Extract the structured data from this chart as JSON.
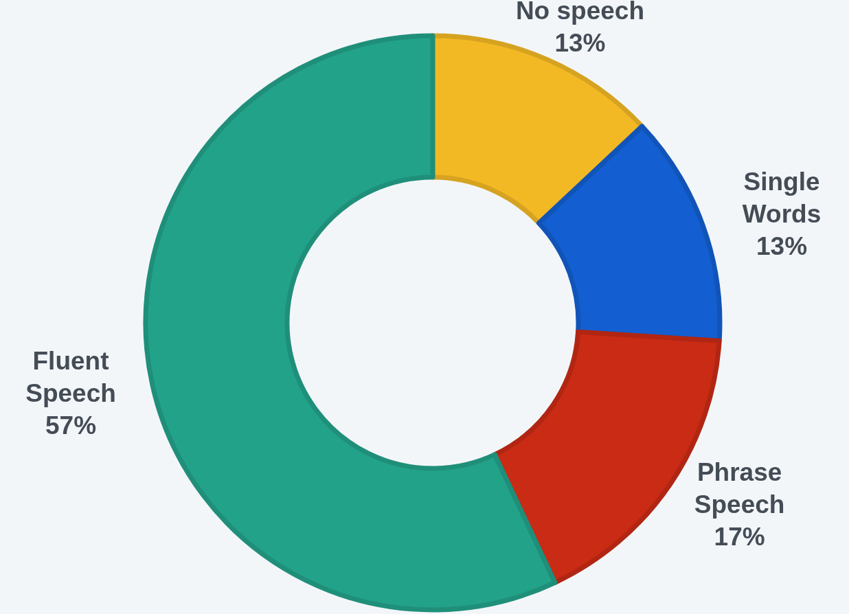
{
  "chart_data": {
    "type": "donut",
    "categories": [
      "No speech",
      "Single Words",
      "Phrase Speech",
      "Fluent Speech"
    ],
    "values": [
      13,
      13,
      17,
      57
    ],
    "colors": [
      "#f3b925",
      "#135fd1",
      "#c92b15",
      "#23a28a"
    ],
    "value_labels": [
      "13%",
      "13%",
      "17%",
      "57%"
    ]
  }
}
